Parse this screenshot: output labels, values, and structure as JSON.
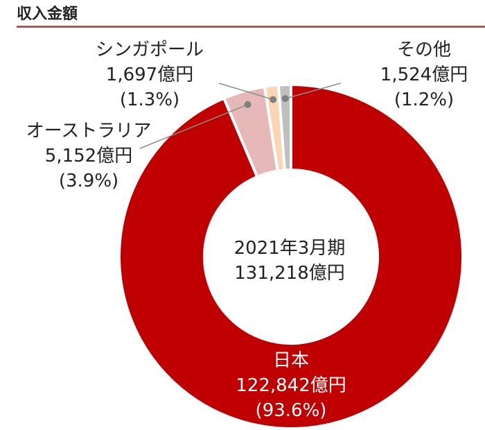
{
  "header": {
    "title": "収入金額"
  },
  "chart_data": {
    "type": "pie",
    "donut": true,
    "center_label": {
      "line1": "2021年3月期",
      "line2": "131,218億円"
    },
    "slices": [
      {
        "name": "日本",
        "value": 122842,
        "value_label": "122,842億円",
        "pct_label": "(93.6%)",
        "color": "#c00000"
      },
      {
        "name": "オーストラリア",
        "value": 5152,
        "value_label": "5,152億円",
        "pct_label": "(3.9%)",
        "color": "#e6b9b8"
      },
      {
        "name": "シンガポール",
        "value": 1697,
        "value_label": "1,697億円",
        "pct_label": "(1.3%)",
        "color": "#fcd5b4"
      },
      {
        "name": "その他",
        "value": 1524,
        "value_label": "1,524億円",
        "pct_label": "(1.2%)",
        "color": "#bfbfbf"
      }
    ],
    "unit": "億円"
  }
}
